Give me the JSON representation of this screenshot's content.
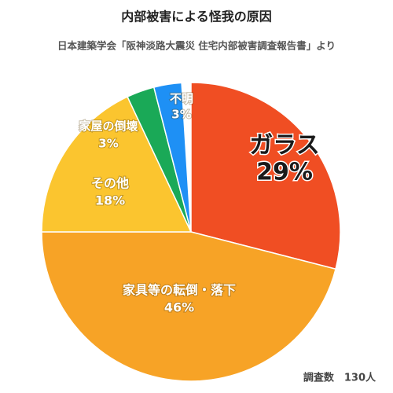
{
  "chart_data": {
    "type": "pie",
    "title": "内部被害による怪我の原因",
    "subtitle": "日本建築学会「阪神淡路大震災 住宅内部被害調査報告書」より",
    "categories": [
      "ガラス",
      "家具等の転倒・落下",
      "その他",
      "家屋の倒壊",
      "不明"
    ],
    "values": [
      29,
      46,
      18,
      3,
      3
    ],
    "value_labels": [
      "29%",
      "46%",
      "18%",
      "3%",
      "3%"
    ],
    "colors": [
      "#f04e23",
      "#f7a326",
      "#fbc52f",
      "#1aa957",
      "#1e90f5"
    ],
    "note": "調査数　130人"
  }
}
